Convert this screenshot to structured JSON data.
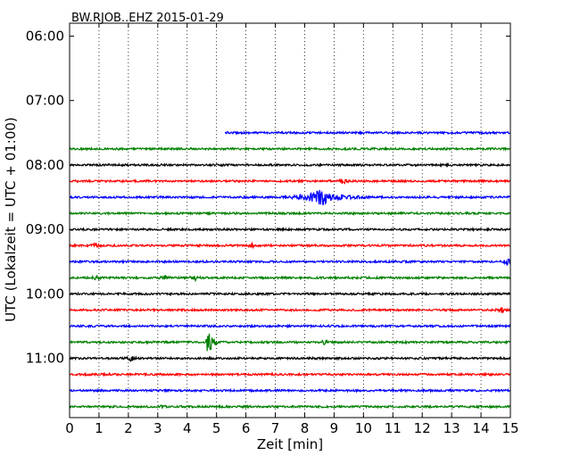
{
  "chart_data": {
    "type": "line",
    "title": "BW.RJOB..EHZ 2015-01-29",
    "xlabel": "Zeit  [min]",
    "ylabel": "UTC (Lokalzeit = UTC + 01:00)",
    "xlim": [
      0,
      15
    ],
    "x_ticks": [
      "0",
      "1",
      "2",
      "3",
      "4",
      "5",
      "6",
      "7",
      "8",
      "9",
      "10",
      "11",
      "12",
      "13",
      "14",
      "15"
    ],
    "y_ticks": [
      "06:00",
      "07:00",
      "08:00",
      "09:00",
      "10:00",
      "11:00"
    ],
    "y_tick_hours": [
      6,
      7,
      8,
      9,
      10,
      11
    ],
    "ylim_hours": [
      5.8,
      11.92
    ],
    "grid": "vertical dotted",
    "colors": [
      "#0000ff",
      "#008000",
      "#000000",
      "#ff0000"
    ],
    "traces": [
      {
        "start": "07:30",
        "x_start": 5.3,
        "color": "#0000ff",
        "events": []
      },
      {
        "start": "07:45",
        "x_start": 0,
        "color": "#008000",
        "events": []
      },
      {
        "start": "08:00",
        "x_start": 0,
        "color": "#000000",
        "events": []
      },
      {
        "start": "08:15",
        "x_start": 0,
        "color": "#ff0000",
        "events": [
          {
            "x": 9.3,
            "amp": 0.5
          }
        ]
      },
      {
        "start": "08:30",
        "x_start": 0,
        "color": "#0000ff",
        "events": [
          {
            "x": 8.6,
            "amp": 2.2,
            "type": "quake"
          }
        ]
      },
      {
        "start": "08:45",
        "x_start": 0,
        "color": "#008000",
        "events": []
      },
      {
        "start": "09:00",
        "x_start": 0,
        "color": "#000000",
        "events": []
      },
      {
        "start": "09:15",
        "x_start": 0,
        "color": "#ff0000",
        "events": [
          {
            "x": 0.9,
            "amp": 0.4
          },
          {
            "x": 6.2,
            "amp": 0.3
          }
        ]
      },
      {
        "start": "09:30",
        "x_start": 0,
        "color": "#0000ff",
        "events": [
          {
            "x": 14.9,
            "amp": 0.5
          }
        ]
      },
      {
        "start": "09:45",
        "x_start": 0,
        "color": "#008000",
        "events": [
          {
            "x": 0.9,
            "amp": 0.4
          },
          {
            "x": 3.2,
            "amp": 0.4
          },
          {
            "x": 4.3,
            "amp": 0.4
          }
        ]
      },
      {
        "start": "10:00",
        "x_start": 0,
        "color": "#000000",
        "events": []
      },
      {
        "start": "10:15",
        "x_start": 0,
        "color": "#ff0000",
        "events": [
          {
            "x": 14.7,
            "amp": 0.4
          }
        ]
      },
      {
        "start": "10:30",
        "x_start": 0,
        "color": "#0000ff",
        "events": []
      },
      {
        "start": "10:45",
        "x_start": 0,
        "color": "#008000",
        "events": [
          {
            "x": 4.7,
            "amp": 3.0,
            "type": "spike"
          },
          {
            "x": 8.7,
            "amp": 0.4
          }
        ]
      },
      {
        "start": "11:00",
        "x_start": 0,
        "color": "#000000",
        "events": [
          {
            "x": 2.1,
            "amp": 0.4
          }
        ]
      },
      {
        "start": "11:15",
        "x_start": 0,
        "color": "#ff0000",
        "events": []
      },
      {
        "start": "11:30",
        "x_start": 0,
        "color": "#0000ff",
        "events": []
      },
      {
        "start": "11:45",
        "x_start": 0,
        "color": "#008000",
        "events": [
          {
            "x": 3.1,
            "amp": 0.3
          }
        ]
      }
    ]
  }
}
